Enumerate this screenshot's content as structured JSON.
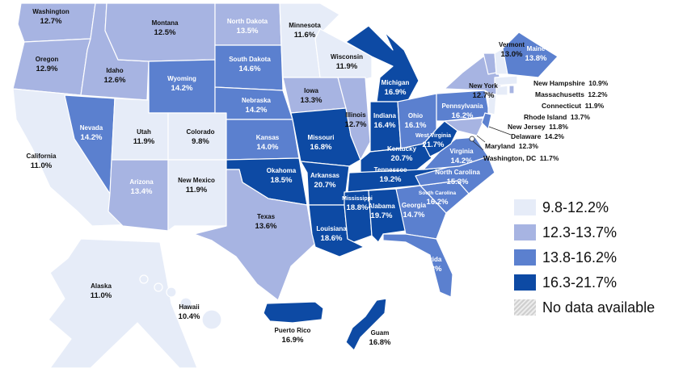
{
  "legend": [
    {
      "label": "9.8-12.2%",
      "color": "#e6ecf8"
    },
    {
      "label": "12.3-13.7%",
      "color": "#a7b4e2"
    },
    {
      "label": "13.8-16.2%",
      "color": "#5b80cf"
    },
    {
      "label": "16.3-21.7%",
      "color": "#0d4aa4"
    },
    {
      "label": "No data available",
      "color": "#d8d8d8"
    }
  ],
  "states": [
    {
      "name": "Washington",
      "value": "12.7%"
    },
    {
      "name": "Oregon",
      "value": "12.9%"
    },
    {
      "name": "California",
      "value": "11.0%"
    },
    {
      "name": "Idaho",
      "value": "12.6%"
    },
    {
      "name": "Nevada",
      "value": "14.2%"
    },
    {
      "name": "Montana",
      "value": "12.5%"
    },
    {
      "name": "Wyoming",
      "value": "14.2%"
    },
    {
      "name": "Utah",
      "value": "11.9%"
    },
    {
      "name": "Arizona",
      "value": "13.4%"
    },
    {
      "name": "Colorado",
      "value": "9.8%"
    },
    {
      "name": "New Mexico",
      "value": "11.9%"
    },
    {
      "name": "North Dakota",
      "value": "13.5%"
    },
    {
      "name": "South Dakota",
      "value": "14.6%"
    },
    {
      "name": "Nebraska",
      "value": "14.2%"
    },
    {
      "name": "Kansas",
      "value": "14.0%"
    },
    {
      "name": "Okahoma",
      "value": "18.5%"
    },
    {
      "name": "Texas",
      "value": "13.6%"
    },
    {
      "name": "Minnesota",
      "value": "11.6%"
    },
    {
      "name": "Iowa",
      "value": "13.3%"
    },
    {
      "name": "Missouri",
      "value": "16.8%"
    },
    {
      "name": "Arkansas",
      "value": "20.7%"
    },
    {
      "name": "Louisiana",
      "value": "18.6%"
    },
    {
      "name": "Wisconsin",
      "value": "11.9%"
    },
    {
      "name": "Illinois",
      "value": "12.7%"
    },
    {
      "name": "Michigan",
      "value": "16.9%"
    },
    {
      "name": "Indiana",
      "value": "16.4%"
    },
    {
      "name": "Ohio",
      "value": "16.1%"
    },
    {
      "name": "Kentucky",
      "value": "20.7%"
    },
    {
      "name": "Tennessee",
      "value": "19.2%"
    },
    {
      "name": "Mississippi",
      "value": "18.8%"
    },
    {
      "name": "Alabama",
      "value": "19.7%"
    },
    {
      "name": "Georgia",
      "value": "14.7%"
    },
    {
      "name": "Florida",
      "value": "15.3%"
    },
    {
      "name": "South Carolina",
      "value": "16.2%"
    },
    {
      "name": "North Carolina",
      "value": "15.3%"
    },
    {
      "name": "Virginia",
      "value": "14.2%"
    },
    {
      "name": "West Virginia",
      "value": "21.7%"
    },
    {
      "name": "Pennsylvania",
      "value": "16.2%"
    },
    {
      "name": "New York",
      "value": "12.7%"
    },
    {
      "name": "Vermont",
      "value": "13.0%"
    },
    {
      "name": "Maine",
      "value": "13.8%"
    },
    {
      "name": "Alaska",
      "value": "11.0%"
    },
    {
      "name": "Hawaii",
      "value": "10.4%"
    },
    {
      "name": "Puerto Rico",
      "value": "16.9%"
    },
    {
      "name": "Guam",
      "value": "16.8%"
    }
  ],
  "external_labels": [
    {
      "name": "New Hampshire",
      "value": "10.9%"
    },
    {
      "name": "Massachusetts",
      "value": "12.2%"
    },
    {
      "name": "Connecticut",
      "value": "11.9%"
    },
    {
      "name": "Rhode Island",
      "value": "13.7%"
    },
    {
      "name": "New Jersey",
      "value": "11.8%"
    },
    {
      "name": "Delaware",
      "value": "14.2%"
    },
    {
      "name": "Maryland",
      "value": "12.3%"
    },
    {
      "name": "Washington, DC",
      "value": "11.7%"
    }
  ]
}
